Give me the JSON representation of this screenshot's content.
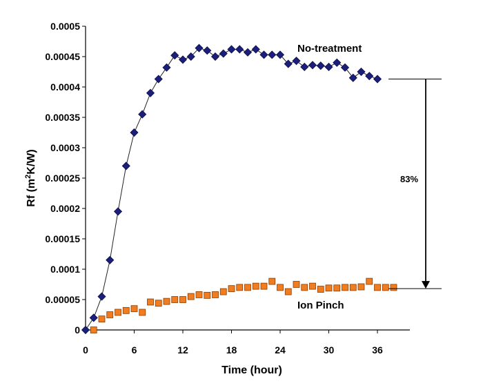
{
  "chart_data": {
    "type": "scatter",
    "xlabel": "Time (hour)",
    "ylabel_parts": {
      "prefix": "Rf (m",
      "sup": "2",
      "suffix": "K/W)"
    },
    "xlim": [
      0,
      40
    ],
    "ylim": [
      0,
      0.0005
    ],
    "x_ticks": [
      0,
      6,
      12,
      18,
      24,
      30,
      36
    ],
    "y_ticks": [
      {
        "value": 0,
        "label": "0"
      },
      {
        "value": 5e-05,
        "label": "0.00005"
      },
      {
        "value": 0.0001,
        "label": "0.0001"
      },
      {
        "value": 0.00015,
        "label": "0.00015"
      },
      {
        "value": 0.0002,
        "label": "0.0002"
      },
      {
        "value": 0.00025,
        "label": "0.00025"
      },
      {
        "value": 0.0003,
        "label": "0.0003"
      },
      {
        "value": 0.00035,
        "label": "0.00035"
      },
      {
        "value": 0.0004,
        "label": "0.0004"
      },
      {
        "value": 0.00045,
        "label": "0.00045"
      },
      {
        "value": 0.0005,
        "label": "0.0005"
      }
    ],
    "series": [
      {
        "name": "No-treatment",
        "marker": "diamond",
        "color": "#1b1f7a",
        "line": true,
        "x": [
          0,
          1,
          2,
          3,
          4,
          5,
          6,
          7,
          8,
          9,
          10,
          11,
          12,
          13,
          14,
          15,
          16,
          17,
          18,
          19,
          20,
          21,
          22,
          23,
          24,
          25,
          26,
          27,
          28,
          29,
          30,
          31,
          32,
          33,
          34,
          35,
          36
        ],
        "y": [
          0,
          2e-05,
          5.5e-05,
          0.000115,
          0.000195,
          0.00027,
          0.000325,
          0.000355,
          0.00039,
          0.000413,
          0.000432,
          0.000452,
          0.000445,
          0.00045,
          0.000464,
          0.00046,
          0.00045,
          0.000455,
          0.000462,
          0.000462,
          0.000457,
          0.000462,
          0.000453,
          0.000453,
          0.000453,
          0.000438,
          0.000443,
          0.000433,
          0.000436,
          0.000435,
          0.000433,
          0.00044,
          0.000432,
          0.000415,
          0.000425,
          0.000418,
          0.000413
        ]
      },
      {
        "name": "Ion Pinch",
        "marker": "square",
        "color": "#f07d20",
        "line": false,
        "x": [
          1,
          2,
          3,
          4,
          5,
          6,
          7,
          8,
          9,
          10,
          11,
          12,
          13,
          14,
          15,
          16,
          17,
          18,
          19,
          20,
          21,
          22,
          23,
          24,
          25,
          26,
          27,
          28,
          29,
          30,
          31,
          32,
          33,
          34,
          35,
          36,
          37,
          38
        ],
        "y": [
          0,
          1.8e-05,
          2.5e-05,
          2.9e-05,
          3.2e-05,
          3.5e-05,
          2.9e-05,
          4.6e-05,
          4.4e-05,
          4.7e-05,
          5e-05,
          5e-05,
          5.5e-05,
          5.8e-05,
          5.7e-05,
          5.8e-05,
          6.3e-05,
          6.8e-05,
          7e-05,
          7e-05,
          7.2e-05,
          7.2e-05,
          8e-05,
          7e-05,
          6.3e-05,
          7.5e-05,
          7e-05,
          7.2e-05,
          6.7e-05,
          6.9e-05,
          6.9e-05,
          7e-05,
          7e-05,
          7.1e-05,
          8e-05,
          7e-05,
          7e-05,
          7e-05
        ]
      }
    ],
    "annotation": {
      "text": "83%",
      "from_value": 0.000413,
      "to_value": 6.8e-05
    }
  }
}
